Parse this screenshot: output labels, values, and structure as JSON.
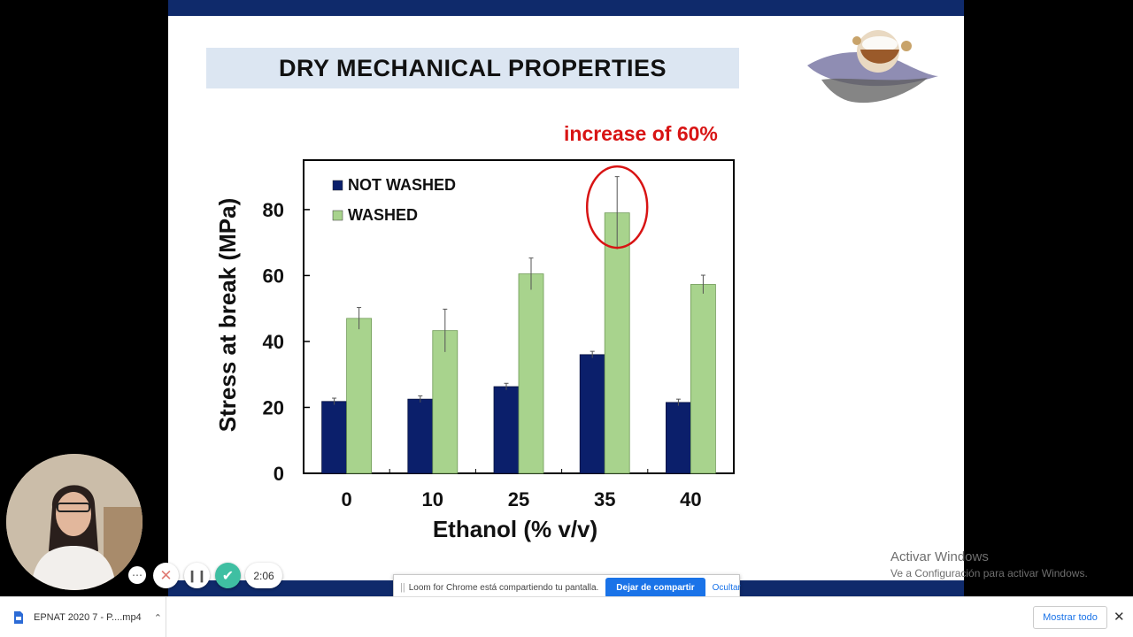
{
  "slide": {
    "title": "DRY MECHANICAL PROPERTIES",
    "callout": "increase of 60%",
    "callout_color": "#d81414",
    "bar_color": "#0f2a6b"
  },
  "chart_data": {
    "type": "bar",
    "categories": [
      "0",
      "10",
      "25",
      "35",
      "40"
    ],
    "series": [
      {
        "name": "NOT WASHED",
        "color": "#0b1f6b",
        "values": [
          21.8,
          22.5,
          26.3,
          36.0,
          21.5
        ],
        "errors": [
          1.0,
          1.0,
          1.0,
          1.0,
          1.0
        ]
      },
      {
        "name": "WASHED",
        "color": "#a8d38d",
        "values": [
          47.0,
          43.3,
          60.5,
          79.0,
          57.3
        ],
        "errors": [
          3.3,
          6.5,
          4.8,
          11.0,
          2.8
        ]
      }
    ],
    "xlabel": "Ethanol (% v/v)",
    "ylabel": "Stress at break (MPa)",
    "ylim": [
      0,
      95
    ],
    "yticks": [
      "0",
      "20",
      "40",
      "60",
      "80"
    ],
    "grid": false,
    "legend": "top-left",
    "highlight": {
      "category": "35",
      "series": "WASHED",
      "color": "#d81414"
    }
  },
  "loom": {
    "more_icon": "ellipsis-icon",
    "cancel_icon": "close-icon",
    "pause_icon": "pause-icon",
    "done_icon": "check-icon",
    "timer": "2:06",
    "share_message": "Loom for Chrome está compartiendo tu pantalla.",
    "stop_button": "Dejar de compartir",
    "hide_button": "Ocultar",
    "accent": "#1a73e8"
  },
  "watermark": {
    "title": "Activar Windows",
    "subtitle": "Ve a Configuración para activar Windows."
  },
  "downloads": {
    "file_name": "EPNAT 2020 7 - P....mp4",
    "show_all": "Mostrar todo",
    "close_icon": "close-icon"
  }
}
